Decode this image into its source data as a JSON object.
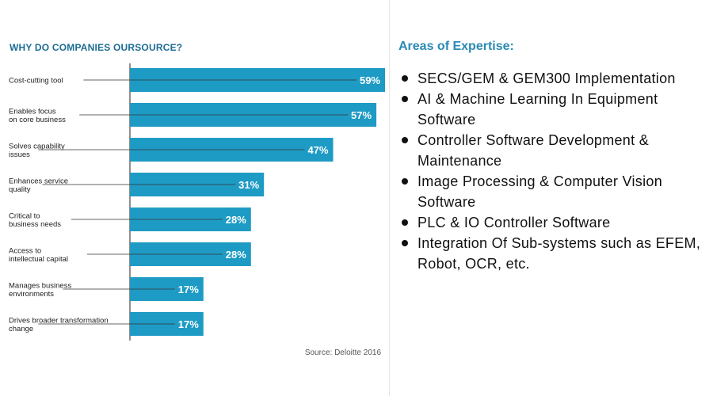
{
  "chart_data": {
    "type": "bar",
    "orientation": "horizontal",
    "title": "WHY DO COMPANIES OURSOURCE?",
    "categories": [
      [
        "Cost-cutting tool"
      ],
      [
        "Enables focus",
        "on core business"
      ],
      [
        "Solves capability",
        "issues"
      ],
      [
        "Enhances service",
        "quality"
      ],
      [
        "Critical to",
        "business needs"
      ],
      [
        "Access to",
        "intellectual capital"
      ],
      [
        "Manages business",
        "environments"
      ],
      [
        "Drives broader transformation",
        "change"
      ]
    ],
    "values": [
      59,
      57,
      47,
      31,
      28,
      28,
      17,
      17
    ],
    "value_labels": [
      "59%",
      "57%",
      "47%",
      "31%",
      "28%",
      "28%",
      "17%",
      "17%"
    ],
    "xlim": [
      0,
      59
    ],
    "grid": false,
    "bar_color": "#1e9bc4",
    "source": "Source: Deloitte 2016"
  },
  "expertise": {
    "title": "Areas of Expertise:",
    "title_color": "#2b8ab3",
    "items": [
      "SECS/GEM & GEM300 Implementation",
      "AI & Machine Learning In Equipment Software",
      "Controller Software Development & Maintenance",
      "Image Processing & Computer Vision Software",
      "PLC & IO Controller Software",
      "Integration Of Sub-systems such as EFEM, Robot, OCR, etc."
    ]
  }
}
